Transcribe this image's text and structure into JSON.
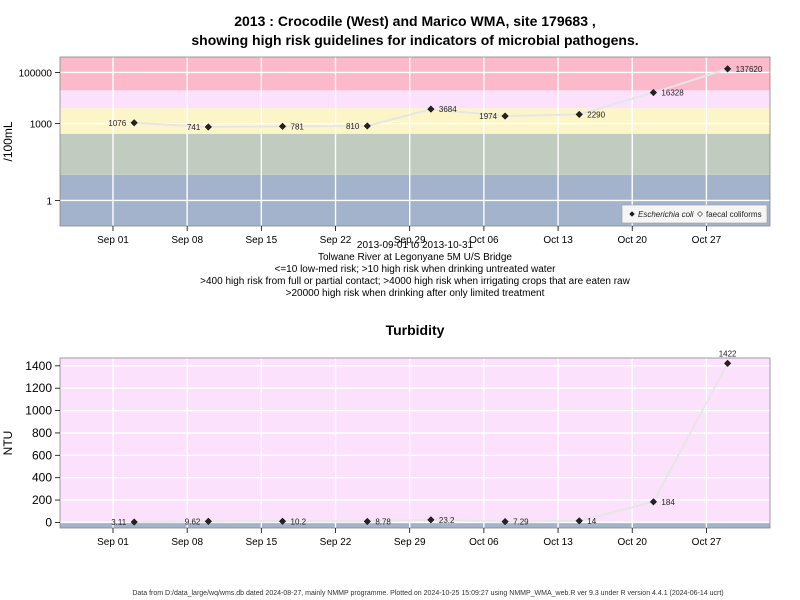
{
  "chart_data": [
    {
      "type": "scatter",
      "title": "2013 : Crocodile (West) and Marico WMA, site 179683 ,",
      "subtitle": "showing high risk guidelines for indicators of microbial pathogens.",
      "ylabel": "/100mL",
      "y_scale": "log10",
      "ylim": [
        0.1,
        400000
      ],
      "y_ticks": [
        {
          "value": 1,
          "label": "1"
        },
        {
          "value": 1000,
          "label": "1000"
        },
        {
          "value": 100000,
          "label": "100000"
        }
      ],
      "x_range": [
        "2013-08-27",
        "2013-11-02"
      ],
      "x_ticks": [
        {
          "date": "2013-09-01",
          "label": "Sep 01"
        },
        {
          "date": "2013-09-08",
          "label": "Sep 08"
        },
        {
          "date": "2013-09-15",
          "label": "Sep 15"
        },
        {
          "date": "2013-09-22",
          "label": "Sep 22"
        },
        {
          "date": "2013-09-29",
          "label": "Sep 29"
        },
        {
          "date": "2013-10-06",
          "label": "Oct 06"
        },
        {
          "date": "2013-10-13",
          "label": "Oct 13"
        },
        {
          "date": "2013-10-20",
          "label": "Oct 20"
        },
        {
          "date": "2013-10-27",
          "label": "Oct 27"
        }
      ],
      "grid": true,
      "risk_bands": [
        {
          "from": 0.1,
          "to": 10,
          "color": "#a3b3cb"
        },
        {
          "from": 10,
          "to": 400,
          "color": "#c1cbc0"
        },
        {
          "from": 400,
          "to": 4000,
          "color": "#fcf5c7"
        },
        {
          "from": 4000,
          "to": 20000,
          "color": "#fce1fc"
        },
        {
          "from": 20000,
          "to": 400000,
          "color": "#fbb9c9"
        }
      ],
      "series": [
        {
          "name": "Escherichia coli",
          "marker": "filled-diamond",
          "points": [
            {
              "x": "2013-09-03",
              "y": 1076,
              "label": "1076"
            },
            {
              "x": "2013-09-10",
              "y": 741,
              "label": "741"
            },
            {
              "x": "2013-09-17",
              "y": 781,
              "label": "781"
            },
            {
              "x": "2013-09-25",
              "y": 810,
              "label": "810"
            },
            {
              "x": "2013-10-01",
              "y": 3684,
              "label": "3684"
            },
            {
              "x": "2013-10-08",
              "y": 1974,
              "label": "1974"
            },
            {
              "x": "2013-10-15",
              "y": 2290,
              "label": "2290"
            },
            {
              "x": "2013-10-22",
              "y": 16328,
              "label": "16328"
            },
            {
              "x": "2013-10-29",
              "y": 137620,
              "label": "137620"
            }
          ]
        },
        {
          "name": "faecal coliforms",
          "marker": "open-diamond",
          "points": []
        }
      ],
      "legend_position": "bottom-right",
      "below_axis_text": [
        "2013-09-01 to 2013-10-31",
        "Tolwane River at Legonyane 5M U/S Bridge",
        "<=10 low-med risk; >10 high risk when drinking untreated water",
        ">400 high risk from full or partial contact; >4000 high risk when irrigating crops that are eaten raw",
        ">20000 high risk when drinking after only limited treatment"
      ]
    },
    {
      "type": "scatter",
      "title": "Turbidity",
      "ylabel": "NTU",
      "y_scale": "linear",
      "ylim": [
        -50,
        1470
      ],
      "y_ticks": [
        {
          "value": 0,
          "label": "0"
        },
        {
          "value": 200,
          "label": "200"
        },
        {
          "value": 400,
          "label": "400"
        },
        {
          "value": 600,
          "label": "600"
        },
        {
          "value": 800,
          "label": "800"
        },
        {
          "value": 1000,
          "label": "1000"
        },
        {
          "value": 1200,
          "label": "1200"
        },
        {
          "value": 1400,
          "label": "1400"
        }
      ],
      "x_range": [
        "2013-08-27",
        "2013-11-02"
      ],
      "x_ticks": [
        {
          "date": "2013-09-01",
          "label": "Sep 01"
        },
        {
          "date": "2013-09-08",
          "label": "Sep 08"
        },
        {
          "date": "2013-09-15",
          "label": "Sep 15"
        },
        {
          "date": "2013-09-22",
          "label": "Sep 22"
        },
        {
          "date": "2013-09-29",
          "label": "Sep 29"
        },
        {
          "date": "2013-10-06",
          "label": "Oct 06"
        },
        {
          "date": "2013-10-13",
          "label": "Oct 13"
        },
        {
          "date": "2013-10-20",
          "label": "Oct 20"
        },
        {
          "date": "2013-10-27",
          "label": "Oct 27"
        }
      ],
      "grid": true,
      "risk_bands": [
        {
          "from": -50,
          "to": 0,
          "color": "#a3b3cb"
        },
        {
          "from": 0,
          "to": 1470,
          "color": "#fce1fc"
        }
      ],
      "series": [
        {
          "marker": "filled-diamond",
          "points": [
            {
              "x": "2013-09-03",
              "y": 3.11,
              "label": "3.11"
            },
            {
              "x": "2013-09-10",
              "y": 9.62,
              "label": "9.62"
            },
            {
              "x": "2013-09-17",
              "y": 10.2,
              "label": "10.2"
            },
            {
              "x": "2013-09-25",
              "y": 8.78,
              "label": "8.78"
            },
            {
              "x": "2013-10-01",
              "y": 23.2,
              "label": "23.2"
            },
            {
              "x": "2013-10-08",
              "y": 7.29,
              "label": "7.29"
            },
            {
              "x": "2013-10-15",
              "y": 14,
              "label": "14"
            },
            {
              "x": "2013-10-22",
              "y": 184,
              "label": "184"
            },
            {
              "x": "2013-10-29",
              "y": 1422,
              "label": "1422"
            }
          ]
        }
      ]
    }
  ],
  "colors": {
    "line": "#e6e6e6",
    "marker": "#222222",
    "gridline": "#ffffff",
    "frame": "#888888"
  },
  "footer": "Data from D:/data_large/wq/wms.db dated 2024-08-27, mainly NMMP programme. Plotted on 2024-10-25 15:09:27 using NMMP_WMA_web.R ver 9.3 under R version 4.4.1 (2024-06-14 ucrt)"
}
